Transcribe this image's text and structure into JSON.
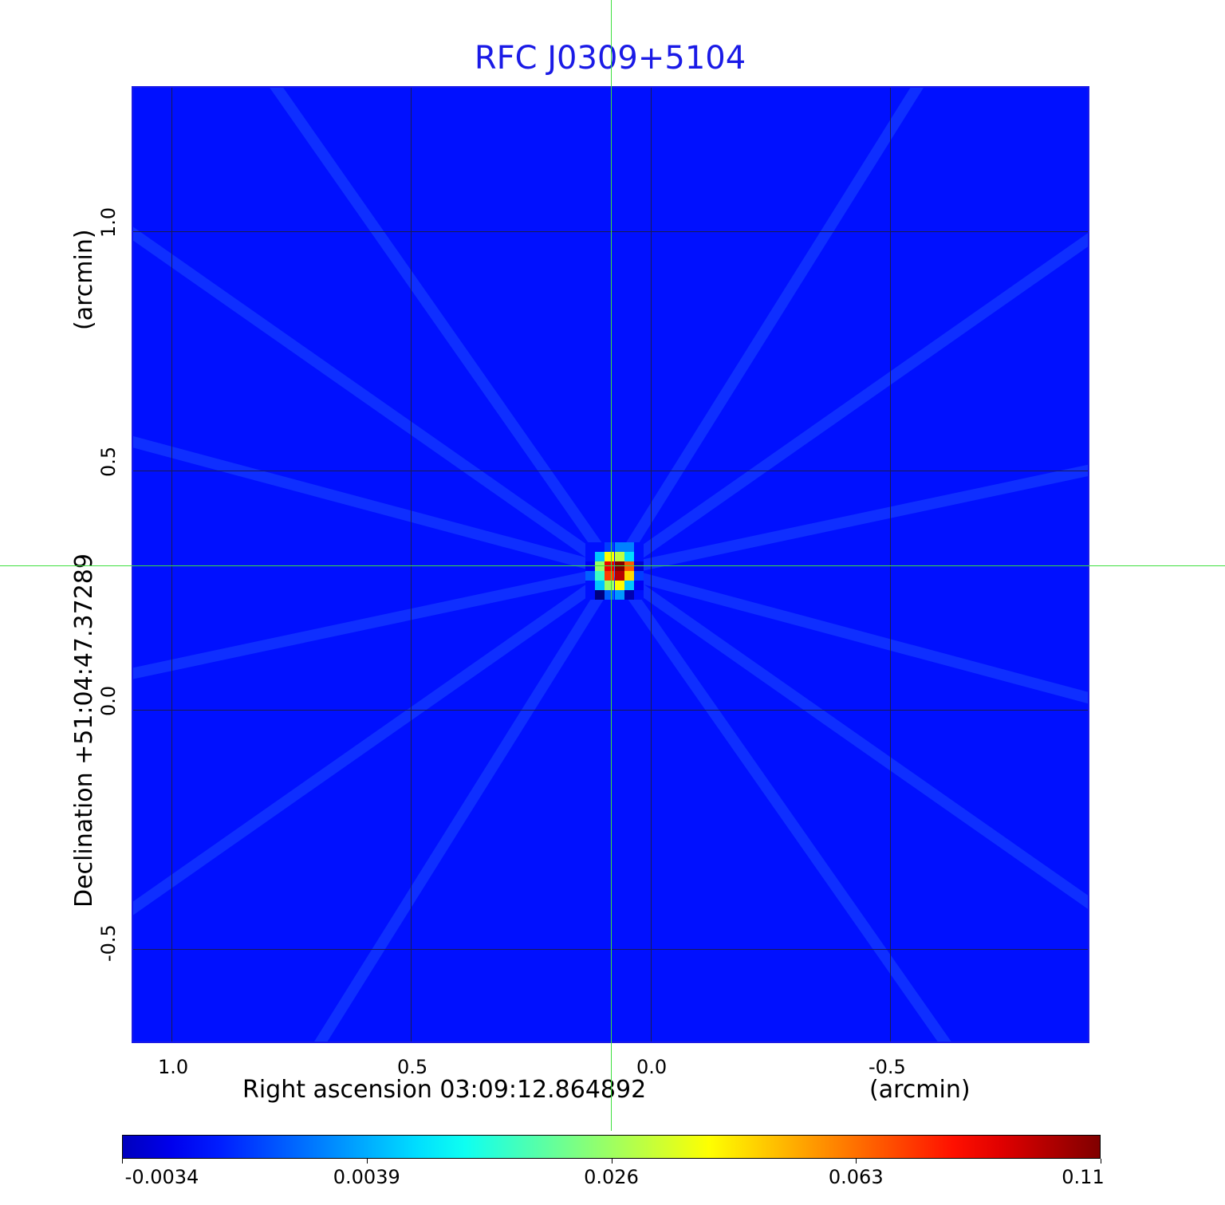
{
  "chart_data": {
    "type": "heatmap",
    "title": "RFC J0309+5104",
    "xlabel": "Right ascension  03:09:12.864892",
    "xunit": "(arcmin)",
    "ylabel": "Declination  +51:04:47.37289",
    "yunit": "(arcmin)",
    "xlim": [
      1.08,
      -0.92
    ],
    "ylim": [
      -0.7,
      1.3
    ],
    "x_ticks": [
      "1.0",
      "0.5",
      "0.0",
      "-0.5"
    ],
    "x_tick_values": [
      1.0,
      0.5,
      0.0,
      -0.5
    ],
    "y_ticks": [
      "1.0",
      "0.5",
      "0.0",
      "-0.5"
    ],
    "y_tick_values": [
      1.0,
      0.5,
      0.0,
      -0.5
    ],
    "grid": true,
    "crosshair": {
      "x": 0.075,
      "y": 0.29
    },
    "background_value": 0.0007,
    "source_center": {
      "x": 0.075,
      "y": 0.29
    },
    "source_pixel_arcmin": 0.02,
    "source_cells": [
      [
        0.0007,
        0.0007,
        0.002,
        0.004,
        0.004,
        0.0007
      ],
      [
        0.0007,
        0.01,
        0.045,
        0.035,
        0.012,
        0.0007
      ],
      [
        0.0,
        0.03,
        0.09,
        0.11,
        0.07,
        -0.001
      ],
      [
        0.003,
        0.02,
        0.075,
        0.1,
        0.05,
        0.002
      ],
      [
        0.0007,
        0.01,
        0.03,
        0.045,
        0.01,
        0.0
      ],
      [
        0.0007,
        -0.0034,
        0.003,
        0.006,
        -0.002,
        0.0007
      ]
    ],
    "colorbar": {
      "colormap": "jet",
      "tick_labels": [
        "-0.0034",
        "0.0039",
        "0.026",
        "0.063",
        "0.11"
      ],
      "tick_values": [
        -0.0034,
        0.0039,
        0.026,
        0.063,
        0.11
      ]
    }
  },
  "colors": {
    "title": "#1a1ae6",
    "crosshair": "#3ee03e",
    "grid": "#1a1a50"
  }
}
